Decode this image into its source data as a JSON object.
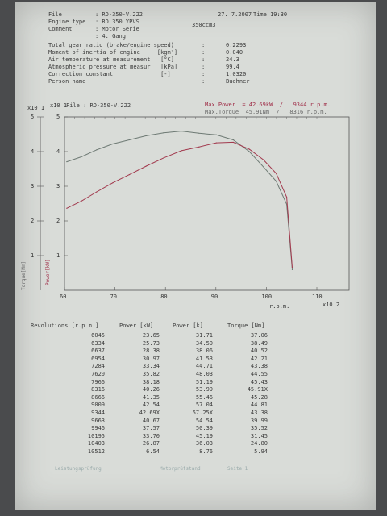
{
  "header": {
    "file_label": "File",
    "file_value": ": RD-350-V.222",
    "date": "27. 7.2007",
    "time": "Time 19:30",
    "engine_label": "Engine type",
    "engine_value": ": RD 350 YPVS",
    "ccm": "350ccm3",
    "comment_label": "Comment",
    "comment_value1": ": Motor Serie",
    "comment_value2": ": 4. Gang",
    "rows": [
      {
        "label": "Total gear ratio (brake/engine speed)",
        "sep": ":",
        "value": "0.2293"
      },
      {
        "label": "Moment of inertia of engine     [kgm²]",
        "sep": ":",
        "value": "0.040"
      },
      {
        "label": "Air temperature at measurement   [°C]",
        "sep": ":",
        "value": "24.3"
      },
      {
        "label": "Atmospheric pressure at measur.  [kPa]",
        "sep": ":",
        "value": "99.4"
      },
      {
        "label": "Correction constant              [-]",
        "sep": ":",
        "value": "1.0320"
      },
      {
        "label": "Person name",
        "sep": ":",
        "value": "Buehner"
      }
    ]
  },
  "chart_header": {
    "file_label": "File : RD-350-V.222",
    "max_power": "Max.Power  = 42.69kW  /   9344 r.p.m.",
    "max_torque": "Max.Torque  45.91Nm  /   8316 r.p.m."
  },
  "chart_data": {
    "type": "line",
    "x_axis_label": "r.p.m.",
    "x_multiplier": "x10 2",
    "y_multiplier": "x10 1",
    "y_label_torque": "Torque[Nm]",
    "y_label_power": "Power[kW]",
    "xlim": [
      60,
      110
    ],
    "ylim": [
      0,
      5
    ],
    "x_ticks": [
      "60",
      "70",
      "80",
      "90",
      "100",
      "110"
    ],
    "y_ticks": [
      "1",
      "2",
      "3",
      "4",
      "5"
    ],
    "grid": false,
    "series": [
      {
        "name": "Torque",
        "color": "#6e7a74",
        "x": [
          60.45,
          63.34,
          66.37,
          69.54,
          72.84,
          76.2,
          79.66,
          83.16,
          86.66,
          90.09,
          93.44,
          96.63,
          99.46,
          101.95,
          104.03,
          105.12
        ],
        "y": [
          3.706,
          3.849,
          4.052,
          4.221,
          4.338,
          4.455,
          4.543,
          4.591,
          4.528,
          4.481,
          4.338,
          3.999,
          3.552,
          3.145,
          2.48,
          0.594
        ]
      },
      {
        "name": "Power",
        "color": "#a23a4e",
        "x": [
          60.45,
          63.34,
          66.37,
          69.54,
          72.84,
          76.2,
          79.66,
          83.16,
          86.66,
          90.09,
          93.44,
          96.63,
          99.46,
          101.95,
          104.03,
          105.12
        ],
        "y": [
          2.365,
          2.573,
          2.838,
          3.097,
          3.334,
          3.582,
          3.818,
          4.026,
          4.135,
          4.254,
          4.269,
          4.067,
          3.757,
          3.37,
          2.687,
          0.654
        ]
      }
    ]
  },
  "table": {
    "headers": [
      "Revolutions [r.p.m.]",
      "Power [kW]",
      "Power [k]",
      "Torque [Nm]"
    ],
    "rows": [
      [
        "6045",
        "23.65",
        "31.71",
        "37.06"
      ],
      [
        "6334",
        "25.73",
        "34.50",
        "38.49"
      ],
      [
        "6637",
        "28.38",
        "38.06",
        "40.52"
      ],
      [
        "6954",
        "30.97",
        "41.53",
        "42.21"
      ],
      [
        "7284",
        "33.34",
        "44.71",
        "43.38"
      ],
      [
        "7620",
        "35.82",
        "48.03",
        "44.55"
      ],
      [
        "7966",
        "38.18",
        "51.19",
        "45.43"
      ],
      [
        "8316",
        "40.26",
        "53.99",
        "45.91X"
      ],
      [
        "8666",
        "41.35",
        "55.46",
        "45.28"
      ],
      [
        "9009",
        "42.54",
        "57.04",
        "44.81"
      ],
      [
        "9344",
        "42.69X",
        "57.25X",
        "43.38"
      ],
      [
        "9663",
        "40.67",
        "54.54",
        "39.99"
      ],
      [
        "9946",
        "37.57",
        "50.39",
        "35.52"
      ],
      [
        "10195",
        "33.70",
        "45.19",
        "31.45"
      ],
      [
        "10403",
        "26.87",
        "36.03",
        "24.80"
      ],
      [
        "10512",
        "6.54",
        "8.76",
        "5.94"
      ]
    ]
  },
  "footer": {
    "left": "Leistungsprüfung",
    "mid": "Motorprüfstand",
    "right": "Seite 1"
  }
}
